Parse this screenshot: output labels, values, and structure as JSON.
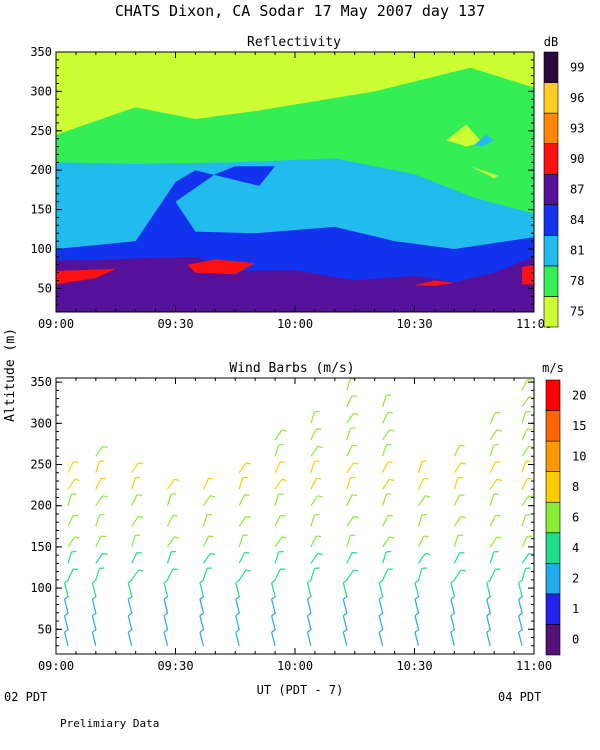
{
  "page": {
    "title": "CHATS Dixon, CA  Sodar  17 May 2007  day 137",
    "footnote": "Prelimiary Data",
    "ylabel": "Altitude (m)",
    "xlabel": "UT  (PDT - 7)",
    "x_start_sub": "02 PDT",
    "x_end_sub": "04 PDT"
  },
  "chart_data": [
    {
      "type": "heatmap",
      "title": "Reflectivity",
      "colorbar_label": "dB",
      "x_ticks": [
        "09:00",
        "09:30",
        "10:00",
        "10:30",
        "11:00"
      ],
      "xlim": [
        "09:00",
        "11:00"
      ],
      "y_ticks": [
        "50",
        "100",
        "150",
        "200",
        "250",
        "300",
        "350"
      ],
      "ylim": [
        20,
        350
      ],
      "levels": [
        {
          "value": "75",
          "color": "#ccff33"
        },
        {
          "value": "78",
          "color": "#33ee55"
        },
        {
          "value": "81",
          "color": "#22bbee"
        },
        {
          "value": "84",
          "color": "#1133ee"
        },
        {
          "value": "87",
          "color": "#551199"
        },
        {
          "value": "90",
          "color": "#ff1111"
        },
        {
          "value": "93",
          "color": "#ff8800"
        },
        {
          "value": "96",
          "color": "#ffcc22"
        },
        {
          "value": "99",
          "color": "#2a0a3a"
        }
      ],
      "regions": [
        {
          "level": "75",
          "points": [
            [
              0,
              20
            ],
            [
              120,
              20
            ],
            [
              120,
              350
            ],
            [
              0,
              350
            ]
          ]
        },
        {
          "level": "78",
          "points": [
            [
              0,
              20
            ],
            [
              120,
              20
            ],
            [
              120,
              305
            ],
            [
              104,
              330
            ],
            [
              80,
              300
            ],
            [
              50,
              275
            ],
            [
              35,
              265
            ],
            [
              20,
              280
            ],
            [
              0,
              245
            ]
          ]
        },
        {
          "level": "81",
          "points": [
            [
              0,
              20
            ],
            [
              120,
              20
            ],
            [
              120,
              145
            ],
            [
              105,
              165
            ],
            [
              90,
              195
            ],
            [
              70,
              215
            ],
            [
              55,
              212
            ],
            [
              45,
              210
            ],
            [
              20,
              208
            ],
            [
              0,
              210
            ]
          ]
        },
        {
          "level": "84",
          "points": [
            [
              0,
              20
            ],
            [
              120,
              20
            ],
            [
              120,
              115
            ],
            [
              100,
              100
            ],
            [
              85,
              110
            ],
            [
              70,
              128
            ],
            [
              50,
              120
            ],
            [
              35,
              122
            ],
            [
              30,
              160
            ],
            [
              40,
              195
            ],
            [
              45,
              205
            ],
            [
              55,
              205
            ],
            [
              51,
              180
            ],
            [
              35,
              200
            ],
            [
              30,
              185
            ],
            [
              20,
              110
            ],
            [
              0,
              100
            ]
          ]
        },
        {
          "level": "87",
          "points": [
            [
              0,
              20
            ],
            [
              120,
              20
            ],
            [
              120,
              90
            ],
            [
              110,
              70
            ],
            [
              100,
              58
            ],
            [
              90,
              66
            ],
            [
              75,
              60
            ],
            [
              60,
              73
            ],
            [
              45,
              72
            ],
            [
              35,
              90
            ],
            [
              20,
              88
            ],
            [
              10,
              86
            ],
            [
              0,
              86
            ]
          ]
        },
        {
          "level": "90",
          "points": [
            [
              0,
              55
            ],
            [
              10,
              63
            ],
            [
              15,
              75
            ],
            [
              0,
              72
            ]
          ]
        },
        {
          "level": "90",
          "points": [
            [
              33,
              80
            ],
            [
              40,
              87
            ],
            [
              50,
              82
            ],
            [
              45,
              68
            ],
            [
              35,
              70
            ]
          ]
        },
        {
          "level": "90",
          "points": [
            [
              90,
              54
            ],
            [
              95,
              60
            ],
            [
              100,
              57
            ],
            [
              95,
              53
            ]
          ]
        },
        {
          "level": "90",
          "points": [
            [
              117,
              55
            ],
            [
              120,
              55
            ],
            [
              120,
              80
            ],
            [
              117,
              77
            ]
          ]
        },
        {
          "level": "75",
          "points": [
            [
              98,
              238
            ],
            [
              103,
              258
            ],
            [
              107,
              235
            ],
            [
              103,
              230
            ]
          ]
        },
        {
          "level": "75",
          "points": [
            [
              104,
              205
            ],
            [
              107,
              200
            ],
            [
              111,
              193
            ],
            [
              110,
              190
            ]
          ]
        },
        {
          "level": "81",
          "points": [
            [
              105,
              232
            ],
            [
              108,
              245
            ],
            [
              110,
              238
            ],
            [
              107,
              230
            ]
          ]
        },
        {
          "level": "99",
          "points": [
            [
              0,
              20
            ],
            [
              0,
              20
            ]
          ]
        }
      ]
    },
    {
      "type": "scatter",
      "title": "Wind Barbs (m/s)",
      "colorbar_label": "m/s",
      "x_ticks": [
        "09:00",
        "09:30",
        "10:00",
        "10:30",
        "11:00"
      ],
      "xlim": [
        "09:00",
        "11:00"
      ],
      "y_ticks": [
        "50",
        "100",
        "150",
        "200",
        "250",
        "300",
        "350"
      ],
      "ylim": [
        20,
        355
      ],
      "speed_levels": [
        {
          "value": "0",
          "color": "#551177"
        },
        {
          "value": "1",
          "color": "#2222ee"
        },
        {
          "value": "2",
          "color": "#22aaee"
        },
        {
          "value": "4",
          "color": "#22dd88"
        },
        {
          "value": "6",
          "color": "#88ee33"
        },
        {
          "value": "8",
          "color": "#ffcc00"
        },
        {
          "value": "10",
          "color": "#ff9900"
        },
        {
          "value": "15",
          "color": "#ff6600"
        },
        {
          "value": "20",
          "color": "#ff0000"
        }
      ],
      "profile_times_min": [
        3,
        10,
        19,
        28,
        37,
        46,
        55,
        64,
        73,
        82,
        91,
        100,
        109,
        117
      ],
      "altitudes_m": [
        30,
        50,
        70,
        90,
        110,
        130,
        150,
        175,
        200,
        220,
        240,
        260,
        280,
        300,
        320,
        340
      ],
      "profile_top_m": [
        240,
        260,
        240,
        220,
        220,
        250,
        280,
        300,
        340,
        320,
        240,
        270,
        310,
        340
      ],
      "speed_by_altitude": [
        {
          "max_alt": 80,
          "level": "2"
        },
        {
          "max_alt": 140,
          "level": "4"
        },
        {
          "max_alt": 210,
          "level": "6"
        },
        {
          "max_alt": 250,
          "level": "8"
        },
        {
          "max_alt": 350,
          "level": "6"
        }
      ]
    }
  ]
}
